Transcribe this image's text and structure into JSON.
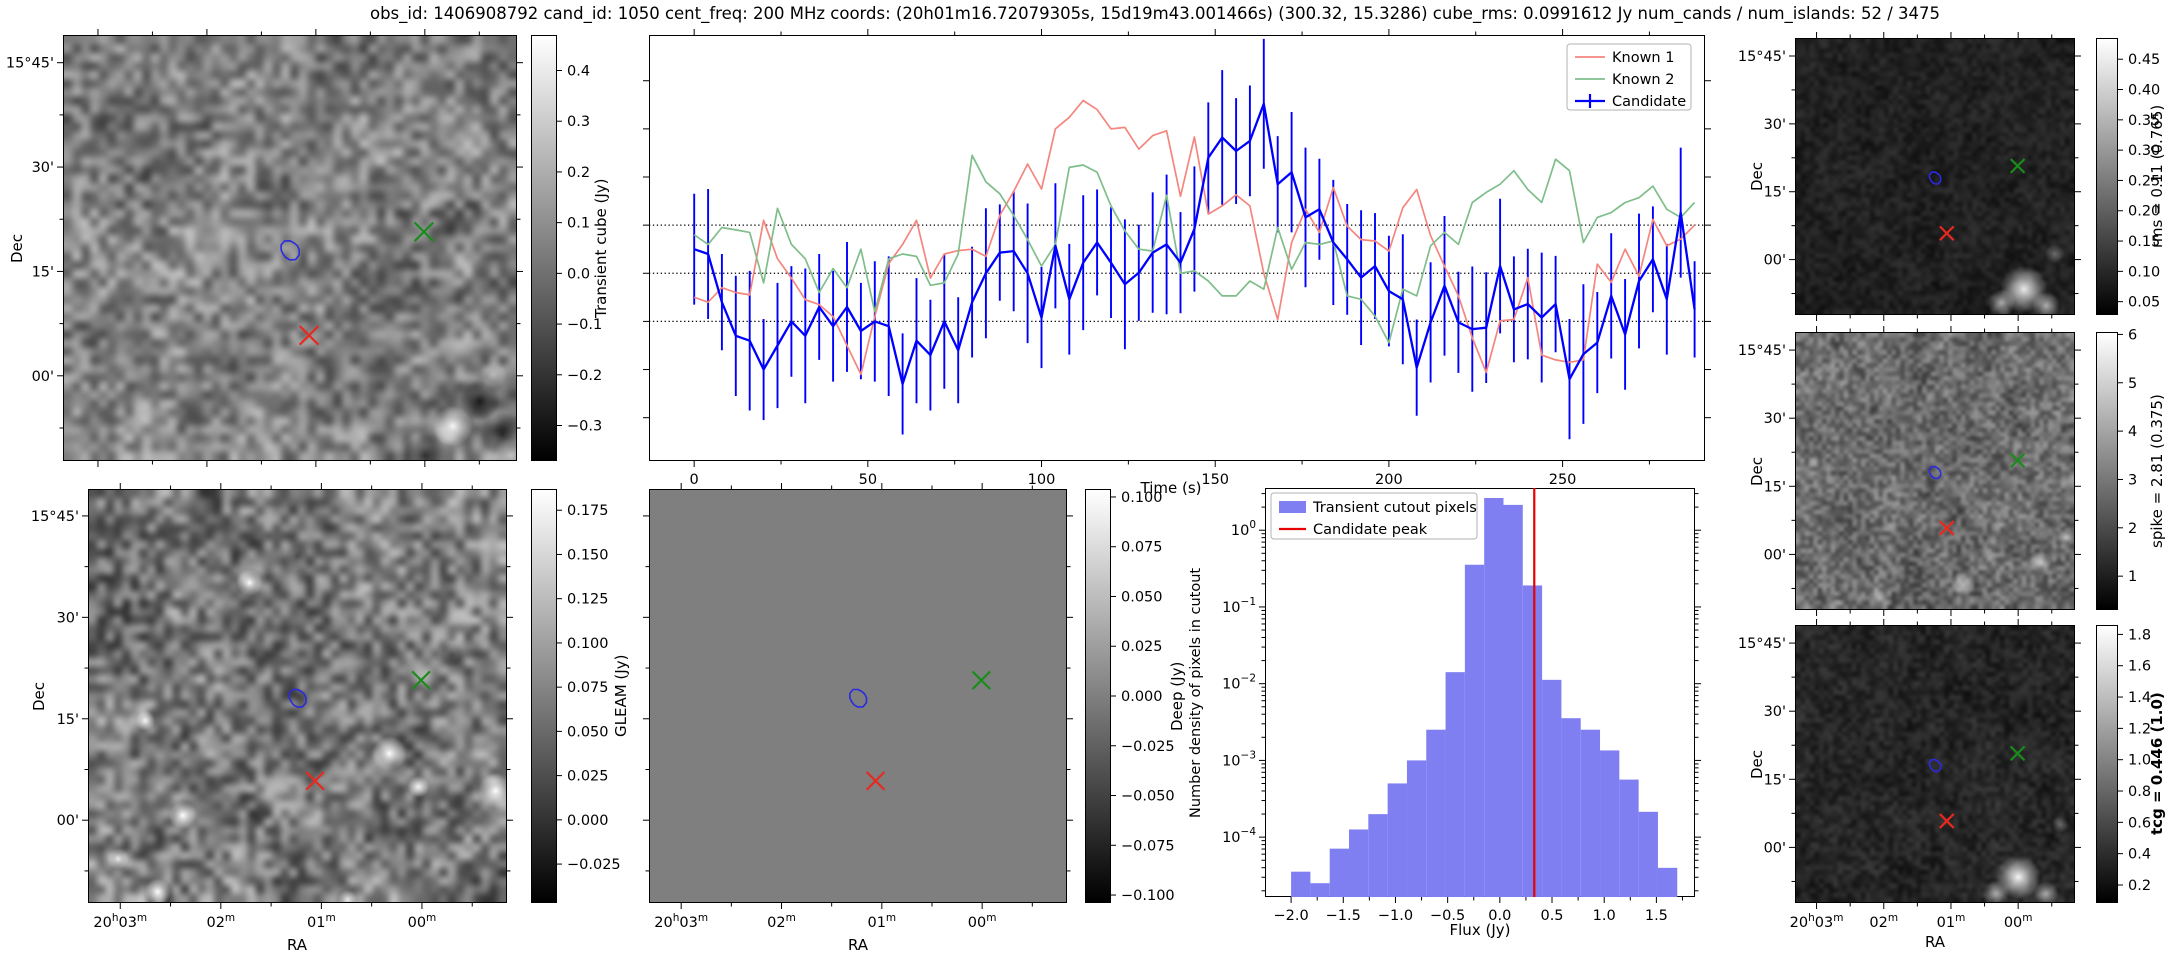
{
  "title": "obs_id: 1406908792 cand_id: 1050 cent_freq: 200 MHz coords: (20h01m16.72079305s, 15d19m43.001466s) (300.32, 15.3286) cube_rms: 0.0991612 Jy num_cands / num_islands: 52 / 3475",
  "cutouts": {
    "dec_label": "Dec",
    "ra_label": "RA",
    "dec_ticks": [
      "15°45'",
      "30'",
      "15'",
      "00'"
    ],
    "ra_ticks": [
      [
        "20",
        "h",
        "03",
        "m"
      ],
      [
        "02",
        "m"
      ],
      [
        "01",
        "m"
      ],
      [
        "00",
        "m"
      ]
    ],
    "markers": {
      "candidate_contour": {
        "x": 0.5,
        "y": 0.505,
        "color": "#2a2ae0",
        "shape": "contour"
      },
      "known1_x": {
        "x": 0.542,
        "y": 0.705,
        "color": "#e8291f",
        "shape": "x"
      },
      "known2_x": {
        "x": 0.795,
        "y": 0.462,
        "color": "#1a8c1a",
        "shape": "x"
      }
    },
    "panels": [
      {
        "name": "transient-cube",
        "colorbar": {
          "label": "Transient cube (Jy)",
          "tick_values": [
            0.4,
            0.3,
            0.2,
            0.1,
            0.0,
            -0.1,
            -0.2,
            -0.3
          ],
          "decimals": 1,
          "vmin": -0.37,
          "vmax": 0.47
        },
        "noise": {
          "seed": 11,
          "cells": 52,
          "base": 0.5,
          "amp": 0.34,
          "blobs": [
            [
              "w",
              0.86,
              0.92,
              0.045,
              0.95
            ],
            [
              "k",
              0.92,
              0.86,
              0.045,
              0.8
            ],
            [
              "k",
              0.8,
              0.99,
              0.05,
              0.7
            ],
            [
              "w",
              0.95,
              0.8,
              0.03,
              0.5
            ],
            [
              "k",
              0.97,
              0.94,
              0.05,
              0.7
            ],
            [
              "w",
              0.99,
              0.99,
              0.04,
              0.6
            ]
          ]
        }
      },
      {
        "name": "rms",
        "colorbar": {
          "label": "rms = 0.11 (0.765)",
          "tick_values": [
            0.45,
            0.4,
            0.35,
            0.3,
            0.25,
            0.2,
            0.15,
            0.1,
            0.05
          ],
          "decimals": 2,
          "vmin": 0.028,
          "vmax": 0.485
        },
        "noise": {
          "seed": 21,
          "cells": 60,
          "base": 0.13,
          "amp": 0.1,
          "blobs": [
            [
              "w",
              0.82,
              0.91,
              0.085,
              0.9
            ],
            [
              "w",
              0.74,
              0.96,
              0.05,
              0.6
            ],
            [
              "w",
              0.9,
              0.97,
              0.05,
              0.65
            ],
            [
              "w",
              0.93,
              0.78,
              0.035,
              0.35
            ]
          ]
        }
      },
      {
        "name": "spike",
        "colorbar": {
          "label": "spike = 2.81 (0.375)",
          "tick_values": [
            6,
            5,
            4,
            3,
            2,
            1
          ],
          "decimals": 0,
          "vmin": 0.3,
          "vmax": 6.05
        },
        "noise": {
          "seed": 31,
          "cells": 64,
          "base": 0.42,
          "amp": 0.26,
          "blobs": [
            [
              "w",
              0.6,
              0.91,
              0.045,
              0.55
            ],
            [
              "w",
              0.88,
              0.83,
              0.04,
              0.5
            ],
            [
              "w",
              0.97,
              0.74,
              0.035,
              0.5
            ],
            [
              "w",
              0.3,
              0.96,
              0.05,
              0.45
            ],
            [
              "w",
              0.13,
              0.99,
              0.04,
              0.4
            ]
          ]
        }
      },
      {
        "name": "tcg",
        "bold": true,
        "colorbar": {
          "label": "tcg = 0.446 (1.0)",
          "tick_values": [
            1.8,
            1.6,
            1.4,
            1.2,
            1.0,
            0.8,
            0.6,
            0.4,
            0.2
          ],
          "decimals": 1,
          "vmin": 0.085,
          "vmax": 1.86
        },
        "noise": {
          "seed": 41,
          "cells": 60,
          "base": 0.15,
          "amp": 0.12,
          "blobs": [
            [
              "w",
              0.8,
              0.91,
              0.08,
              0.95
            ],
            [
              "w",
              0.72,
              0.97,
              0.05,
              0.6
            ],
            [
              "w",
              0.9,
              0.97,
              0.045,
              0.6
            ],
            [
              "w",
              0.95,
              0.72,
              0.03,
              0.35
            ]
          ]
        }
      },
      {
        "name": "gleam",
        "colorbar": {
          "label": "GLEAM (Jy)",
          "tick_values": [
            0.175,
            0.15,
            0.125,
            0.1,
            0.075,
            0.05,
            0.025,
            0.0,
            -0.025
          ],
          "decimals": 3,
          "vmin": -0.047,
          "vmax": 0.187
        },
        "noise": {
          "seed": 51,
          "cells": 50,
          "base": 0.47,
          "amp": 0.38,
          "blobs": [
            [
              "w",
              0.385,
              0.225,
              0.032,
              1
            ],
            [
              "w",
              0.135,
              0.56,
              0.024,
              0.95
            ],
            [
              "w",
              0.225,
              0.79,
              0.034,
              1
            ],
            [
              "w",
              0.165,
              0.975,
              0.032,
              1
            ],
            [
              "w",
              0.72,
              0.64,
              0.042,
              1
            ],
            [
              "w",
              0.79,
              0.72,
              0.026,
              0.9
            ],
            [
              "w",
              0.975,
              0.73,
              0.042,
              1
            ],
            [
              "w",
              0.07,
              0.895,
              0.026,
              0.9
            ],
            [
              "w",
              0.62,
              0.995,
              0.024,
              0.85
            ],
            [
              "k",
              0.87,
              0.4,
              0.03,
              0.5
            ],
            [
              "k",
              0.5,
              0.16,
              0.03,
              0.5
            ]
          ]
        }
      },
      {
        "name": "deep",
        "colorbar": {
          "label": "Deep (Jy)",
          "tick_values": [
            0.1,
            0.075,
            0.05,
            0.025,
            0.0,
            -0.025,
            -0.05,
            -0.075,
            -0.1
          ],
          "decimals": 3,
          "vmin": -0.104,
          "vmax": 0.104
        },
        "flat_color": "#7f7f7f"
      }
    ]
  },
  "chart_data": [
    {
      "type": "line",
      "xlabel": "Time (s)",
      "x_start": 0,
      "x_step": 4,
      "xticks": [
        0,
        50,
        100,
        150,
        200,
        250
      ],
      "xlim": [
        -13,
        291
      ],
      "ylim": [
        -0.39,
        0.495
      ],
      "yticks": [
        0.4,
        0.3,
        0.2,
        0.1,
        0.0,
        -0.1,
        -0.2,
        -0.3
      ],
      "hlines": [
        0.1,
        0.0,
        -0.1
      ],
      "legend_position": "upper right",
      "series": [
        {
          "name": "Known 1",
          "color": "#f4867e",
          "values": [
            -0.05,
            -0.06,
            -0.03,
            -0.04,
            -0.045,
            0.11,
            0.03,
            -0.01,
            -0.055,
            -0.065,
            -0.09,
            -0.15,
            -0.21,
            -0.09,
            0.02,
            0.06,
            0.11,
            -0.01,
            0.04,
            0.047,
            0.05,
            0.035,
            0.12,
            0.17,
            0.227,
            0.175,
            0.3,
            0.324,
            0.359,
            0.34,
            0.3,
            0.303,
            0.258,
            0.286,
            0.296,
            0.16,
            0.283,
            0.123,
            0.14,
            0.163,
            0.14,
            0,
            -0.096,
            0.064,
            0.133,
            0.085,
            0.178,
            0.098,
            0.07,
            0.067,
            0.046,
            0.136,
            0.174,
            0.078,
            0.015,
            -0.047,
            -0.134,
            -0.206,
            -0.099,
            -0.096,
            -0.009,
            -0.17,
            -0.18,
            -0.185,
            -0.18,
            0.019,
            -0.019,
            0.05,
            -0.006,
            0.112,
            0.057,
            0.071,
            0.1
          ]
        },
        {
          "name": "Known 2",
          "color": "#7fbe8b",
          "values": [
            0.08,
            0.06,
            0.095,
            0.09,
            0.085,
            -0.02,
            0.135,
            0.06,
            0.03,
            -0.04,
            0.01,
            -0.03,
            0.05,
            -0.08,
            0.03,
            0.04,
            0.035,
            -0.025,
            -0.02,
            0.04,
            0.245,
            0.19,
            0.165,
            0.12,
            0.07,
            0.015,
            0.06,
            0.22,
            0.225,
            0.21,
            0.14,
            0.088,
            0.05,
            0.046,
            0.162,
            0,
            0.005,
            -0.016,
            -0.047,
            -0.047,
            -0.016,
            -0.033,
            0.095,
            0.008,
            0.064,
            0.06,
            0.067,
            -0.047,
            -0.054,
            -0.089,
            -0.144,
            -0.033,
            -0.047,
            0.057,
            0.085,
            0.06,
            0.147,
            0.168,
            0.185,
            0.213,
            0.174,
            0.147,
            0.237,
            0.213,
            0.064,
            0.116,
            0.126,
            0.147,
            0.157,
            0.181,
            0.133,
            0.116,
            0.147
          ]
        },
        {
          "name": "Candidate",
          "color": "#0000ff",
          "values": [
            0.05,
            0.04,
            -0.06,
            -0.13,
            -0.14,
            -0.2,
            -0.15,
            -0.1,
            -0.13,
            -0.07,
            -0.11,
            -0.07,
            -0.12,
            -0.1,
            -0.11,
            -0.23,
            -0.14,
            -0.17,
            -0.1,
            -0.16,
            -0.06,
            0,
            0.043,
            0.046,
            0,
            -0.092,
            0.057,
            -0.054,
            0.022,
            0.064,
            0.022,
            -0.023,
            0.001,
            0.043,
            0.06,
            0.022,
            0.092,
            0.24,
            0.282,
            0.254,
            0.275,
            0.352,
            0.185,
            0.21,
            0.116,
            0.133,
            0.064,
            0.029,
            -0.009,
            0.015,
            -0.037,
            -0.054,
            -0.196,
            -0.102,
            -0.026,
            -0.102,
            -0.116,
            -0.113,
            0.015,
            -0.075,
            -0.064,
            -0.092,
            -0.064,
            -0.22,
            -0.168,
            -0.144,
            -0.047,
            -0.127,
            -0.016,
            0.029,
            -0.054,
            0.126,
            -0.075
          ],
          "yerr": [
            0.115,
            0.135,
            0.1,
            0.125,
            0.145,
            0.105,
            0.13,
            0.115,
            0.14,
            0.11,
            0.115,
            0.135,
            0.1,
            0.125,
            0.145,
            0.105,
            0.13,
            0.115,
            0.14,
            0.11,
            0.115,
            0.135,
            0.1,
            0.125,
            0.145,
            0.105,
            0.13,
            0.115,
            0.14,
            0.11,
            0.115,
            0.135,
            0.1,
            0.125,
            0.145,
            0.105,
            0.13,
            0.115,
            0.14,
            0.11,
            0.115,
            0.135,
            0.1,
            0.125,
            0.145,
            0.105,
            0.13,
            0.115,
            0.14,
            0.11,
            0.115,
            0.135,
            0.1,
            0.125,
            0.145,
            0.105,
            0.13,
            0.115,
            0.14,
            0.11,
            0.115,
            0.135,
            0.1,
            0.125,
            0.145,
            0.105,
            0.13,
            0.115,
            0.14,
            0.11,
            0.115,
            0.135,
            0.1
          ]
        }
      ]
    },
    {
      "type": "bar",
      "xlabel": "Flux (Jy)",
      "ylabel": "Number density of pixels in cutout",
      "yscale": "log",
      "bin_start": -2.0,
      "bin_width": 0.185,
      "log10_density": [
        -4.45,
        -4.6,
        -4.15,
        -3.9,
        -3.7,
        -3.3,
        -3.0,
        -2.6,
        -1.85,
        -0.45,
        0.42,
        0.33,
        -0.72,
        -1.95,
        -2.45,
        -2.6,
        -2.87,
        -3.25,
        -3.67,
        -4.4
      ],
      "candidate_peak": 0.33,
      "bar_color": "#7f7ff2",
      "peak_color": "#e60000",
      "xticks": [
        -2.0,
        -1.5,
        -1.0,
        -0.5,
        0.0,
        0.5,
        1.0,
        1.5
      ],
      "ytick_exponents": [
        0,
        -1,
        -2,
        -3,
        -4
      ],
      "xlim": [
        -2.25,
        1.87
      ],
      "ylog_lim": [
        -4.78,
        0.55
      ],
      "legend": [
        {
          "label": "Transient cutout pixels",
          "type": "patch"
        },
        {
          "label": "Candidate peak",
          "type": "line"
        }
      ]
    }
  ]
}
